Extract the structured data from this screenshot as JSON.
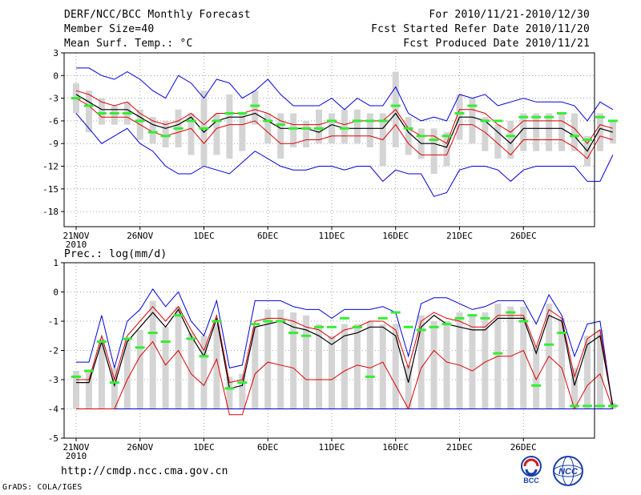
{
  "header": {
    "title": "DERF/NCC/BCC Monthly Forecast",
    "member_size": "Member Size=40",
    "variable": "Mean Surf. Temp.: °C",
    "period": "For 2010/11/21-2010/12/30",
    "started": "Fcst Started Refer Date 2010/11/20",
    "produced": "Fcst Produced Date 2010/11/21"
  },
  "footer": {
    "url": "http://cmdp.ncc.cma.gov.cn",
    "credit": "GrADS: COLA/IGES",
    "logo1_text": "BCC",
    "logo2_text": "NCC"
  },
  "colors": {
    "envelope": "#0000dd",
    "spread": "#dd0000",
    "mean": "#000000",
    "observed": "#33ee33",
    "bars": "#d4d4d4",
    "grid": "#888888"
  },
  "chart_data": [
    {
      "type": "line",
      "title": "Mean Surf. Temp.: °C",
      "x_labels": [
        "21NOV",
        "26NOV",
        "1DEC",
        "6DEC",
        "11DEC",
        "16DEC",
        "21DEC",
        "26DEC"
      ],
      "x_label_year": "2010",
      "ylim": [
        -20,
        3
      ],
      "yticks": [
        3,
        0,
        -3,
        -6,
        -9,
        -12,
        -15,
        -18
      ],
      "series": [
        {
          "name": "max",
          "values": [
            1,
            1,
            0,
            -0.5,
            0.5,
            -0.5,
            -2,
            -3,
            0,
            -1,
            -3,
            -0.5,
            -1,
            -3,
            -2,
            -0.5,
            -2.5,
            -4,
            -4,
            -4,
            -3,
            -4.5,
            -3,
            -4,
            -4,
            -1.5,
            -5,
            -6,
            -5.5,
            -6,
            -2.5,
            -3,
            -2.5,
            -4,
            -3.5,
            -3,
            -3.5,
            -3.5,
            -3.5,
            -4,
            -6,
            -3.5,
            -4.5
          ]
        },
        {
          "name": "spread_upper",
          "values": [
            -2,
            -2.5,
            -3.5,
            -4,
            -3.5,
            -5,
            -6,
            -6.5,
            -6,
            -5,
            -6.5,
            -5,
            -5,
            -5,
            -4.5,
            -5,
            -6,
            -6.5,
            -6.5,
            -6.5,
            -6,
            -6.5,
            -6,
            -6,
            -6,
            -4.5,
            -7,
            -8,
            -8,
            -9,
            -4.5,
            -4.5,
            -5,
            -6.5,
            -7.5,
            -6,
            -6,
            -6,
            -6,
            -7,
            -9,
            -6.5,
            -7
          ]
        },
        {
          "name": "mean",
          "values": [
            -2.5,
            -3.5,
            -4.5,
            -4.5,
            -4.5,
            -5.5,
            -6.5,
            -7,
            -6.5,
            -5.5,
            -7.5,
            -6,
            -5.5,
            -5.5,
            -5,
            -6,
            -7,
            -7,
            -7,
            -7.5,
            -6.5,
            -7,
            -7,
            -7,
            -7,
            -5,
            -7.5,
            -9,
            -9,
            -9.5,
            -5.5,
            -5.5,
            -6,
            -7.5,
            -9,
            -7,
            -7,
            -7,
            -7,
            -8,
            -10,
            -7,
            -7.5
          ]
        },
        {
          "name": "spread_lower",
          "values": [
            -3,
            -4,
            -5.5,
            -5.5,
            -5.5,
            -6.5,
            -7.5,
            -8,
            -7.5,
            -7,
            -9,
            -7,
            -6.5,
            -6.5,
            -6,
            -7.5,
            -9,
            -9,
            -8.5,
            -8.5,
            -8,
            -8,
            -8,
            -8,
            -8.5,
            -6.5,
            -9,
            -10.5,
            -10.5,
            -10.5,
            -6.5,
            -6.5,
            -7.5,
            -9,
            -10.5,
            -8.5,
            -8.5,
            -8.5,
            -8.5,
            -9.5,
            -11,
            -8,
            -8.5
          ]
        },
        {
          "name": "min",
          "values": [
            -5,
            -7,
            -9,
            -8,
            -7,
            -9,
            -10,
            -12,
            -13,
            -13,
            -12,
            -12.5,
            -13,
            -11.5,
            -10,
            -11,
            -12,
            -12.5,
            -12.5,
            -12,
            -12,
            -12.5,
            -12,
            -12,
            -14,
            -12.5,
            -13,
            -13,
            -16,
            -15.5,
            -12.5,
            -12,
            -12,
            -12.5,
            -14,
            -12.5,
            -12,
            -12,
            -12,
            -12,
            -14,
            -14,
            -10.5
          ]
        },
        {
          "name": "observed",
          "values": [
            -3,
            -4,
            -5,
            -5,
            -5,
            -6,
            -7.5,
            -8,
            -7,
            -6,
            -7,
            -6,
            -5,
            -5,
            -4,
            -6,
            -6.5,
            -7,
            -7,
            -7,
            -6,
            -7,
            -6,
            -6,
            -6,
            -4,
            -7,
            -8,
            -8.5,
            -8,
            -5,
            -4,
            -6,
            -6,
            -8,
            -5.5,
            -5.5,
            -5.5,
            -5,
            -8,
            -8.5,
            -5.5,
            -6
          ]
        },
        {
          "name": "bar_top",
          "values": [
            -1,
            -2,
            -3,
            -4,
            -3.5,
            -4.5,
            -5.5,
            -6,
            -4.5,
            -5,
            -2,
            -5,
            -2.5,
            -5,
            -2,
            -5,
            -5,
            -5,
            -6,
            -4.5,
            -5,
            -4.5,
            -4.5,
            -5,
            -5,
            0.5,
            -5.5,
            -7,
            -7,
            -7.5,
            -2.5,
            -3,
            -5.5,
            -6.5,
            -6,
            -5,
            -5,
            -5,
            -5,
            -5,
            -8,
            -5,
            -6
          ]
        },
        {
          "name": "bar_bottom",
          "values": [
            -5,
            -7.5,
            -6.5,
            -6.5,
            -6.5,
            -8.5,
            -9,
            -9.5,
            -9.5,
            -10.5,
            -12,
            -10.5,
            -11,
            -10,
            -6.5,
            -9,
            -11,
            -9.5,
            -9.5,
            -9,
            -9,
            -9,
            -9,
            -9.5,
            -12,
            -9.5,
            -10.5,
            -11,
            -13,
            -12,
            -8.5,
            -9,
            -10,
            -11,
            -11,
            -10,
            -10,
            -10,
            -10,
            -10,
            -12,
            -10,
            -9
          ]
        }
      ]
    },
    {
      "type": "line",
      "title": "Prec.: log(mm/d)",
      "x_labels": [
        "21NOV",
        "26NOV",
        "1DEC",
        "6DEC",
        "11DEC",
        "16DEC",
        "21DEC",
        "26DEC"
      ],
      "x_label_year": "2010",
      "ylim": [
        -5,
        1
      ],
      "yticks": [
        1,
        0,
        -1,
        -2,
        -3,
        -4,
        -5
      ],
      "series": [
        {
          "name": "max",
          "values": [
            -2.4,
            -2.4,
            -0.8,
            -2.6,
            -1.0,
            -0.6,
            0.1,
            -0.5,
            0,
            -1,
            -1.5,
            -0.3,
            -2.6,
            -2.5,
            -0.3,
            -0.3,
            -0.3,
            -0.5,
            -0.6,
            -0.6,
            -0.9,
            -0.6,
            -0.6,
            -0.6,
            -0.5,
            -0.7,
            -2.2,
            -0.4,
            -0.2,
            -0.2,
            -0.4,
            -0.6,
            -0.5,
            -0.3,
            -0.3,
            -0.3,
            -1.1,
            -0.1,
            -0.8,
            -2.2,
            -1.1,
            -1.0,
            -4.0
          ]
        },
        {
          "name": "spread_upper",
          "values": [
            -3.0,
            -3.0,
            -1.5,
            -3.0,
            -1.5,
            -1.0,
            -0.5,
            -1.0,
            -0.5,
            -1.3,
            -2.0,
            -0.8,
            -3.1,
            -3.0,
            -1.0,
            -0.9,
            -0.9,
            -1.0,
            -1.2,
            -1.3,
            -1.6,
            -1.3,
            -1.2,
            -1.0,
            -1.0,
            -1.3,
            -2.6,
            -1.0,
            -0.7,
            -0.9,
            -1.0,
            -1.2,
            -1.2,
            -0.8,
            -0.8,
            -0.8,
            -1.9,
            -0.6,
            -0.9,
            -2.9,
            -1.6,
            -1.3,
            -3.9
          ]
        },
        {
          "name": "mean",
          "values": [
            -3.1,
            -3.1,
            -1.7,
            -3.2,
            -1.7,
            -1.2,
            -0.7,
            -1.2,
            -0.6,
            -1.5,
            -2.2,
            -0.9,
            -3.3,
            -3.2,
            -1.2,
            -1.1,
            -1.0,
            -1.2,
            -1.3,
            -1.5,
            -1.8,
            -1.5,
            -1.4,
            -1.2,
            -1.2,
            -1.5,
            -3.1,
            -1.2,
            -0.8,
            -1.1,
            -1.2,
            -1.3,
            -1.3,
            -0.9,
            -0.9,
            -0.9,
            -2.1,
            -0.8,
            -1.0,
            -3.2,
            -1.8,
            -1.5,
            -3.9
          ]
        },
        {
          "name": "spread_lower",
          "values": [
            -4.0,
            -4.0,
            -4.0,
            -4.0,
            -3.0,
            -2.2,
            -1.7,
            -2.5,
            -2.0,
            -2.8,
            -3.2,
            -2.3,
            -4.2,
            -4.2,
            -2.8,
            -2.4,
            -2.5,
            -2.6,
            -3.0,
            -3.0,
            -3.0,
            -2.7,
            -2.5,
            -2.6,
            -2.4,
            -3.2,
            -4.0,
            -2.6,
            -2.0,
            -2.4,
            -2.5,
            -2.7,
            -2.4,
            -2.2,
            -2.2,
            -2.0,
            -3.0,
            -2.2,
            -2.6,
            -4.0,
            -3.2,
            -2.8,
            -4.0
          ]
        },
        {
          "name": "min",
          "values": [
            -4,
            -4,
            -4,
            -4,
            -4,
            -4,
            -4,
            -4,
            -4,
            -4,
            -4,
            -4,
            -4,
            -4,
            -4,
            -4,
            -4,
            -4,
            -4,
            -4,
            -4,
            -4,
            -4,
            -4,
            -4,
            -4,
            -4,
            -4,
            -4,
            -4,
            -4,
            -4,
            -4,
            -4,
            -4,
            -4,
            -4,
            -4,
            -4,
            -4,
            -4,
            -4,
            -4
          ]
        },
        {
          "name": "observed",
          "values": [
            -2.9,
            -2.7,
            -1.7,
            -3.1,
            -1.6,
            -1.9,
            -1.4,
            -1.7,
            -0.8,
            -1.6,
            -2.2,
            -1.0,
            -3.3,
            -3.1,
            -1.1,
            -1.0,
            -1.0,
            -1.4,
            -1.5,
            -1.2,
            -1.2,
            -0.9,
            -1.2,
            -2.9,
            -0.9,
            -0.7,
            -1.2,
            -1.3,
            -1.2,
            -1.1,
            -0.9,
            -0.8,
            -0.9,
            -2.1,
            -0.7,
            -1.0,
            -3.2,
            -1.8,
            -1.4,
            -3.9,
            -3.9,
            -3.9,
            -3.9
          ]
        },
        {
          "name": "bar_top",
          "values": [
            -2.7,
            -2.7,
            -1.6,
            -2.6,
            -1.6,
            -1.3,
            -0.3,
            -1.2,
            -0.5,
            -1.4,
            -1.5,
            -1.1,
            -2.9,
            -2.8,
            -1.2,
            -0.6,
            -0.6,
            -0.7,
            -0.8,
            -1.1,
            -1.5,
            -1.1,
            -1.1,
            -1.0,
            -1.1,
            -1.1,
            -2.5,
            -0.8,
            -1.0,
            -1.0,
            -0.7,
            -0.8,
            -0.7,
            -0.4,
            -0.5,
            -0.5,
            -1.9,
            -0.4,
            -0.9,
            -2.6,
            -1.5,
            -1.3,
            -3.8
          ]
        },
        {
          "name": "bar_bottom",
          "values": [
            -4,
            -4,
            -4,
            -4,
            -4,
            -4,
            -4,
            -4,
            -4,
            -4,
            -4,
            -4,
            -4,
            -4,
            -4,
            -4,
            -4,
            -4,
            -4,
            -4,
            -4,
            -4,
            -4,
            -4,
            -4,
            -4,
            -4,
            -4,
            -4,
            -4,
            -4,
            -4,
            -4,
            -4,
            -4,
            -4,
            -4,
            -4,
            -4,
            -4,
            -4,
            -4,
            -4
          ]
        }
      ]
    }
  ]
}
